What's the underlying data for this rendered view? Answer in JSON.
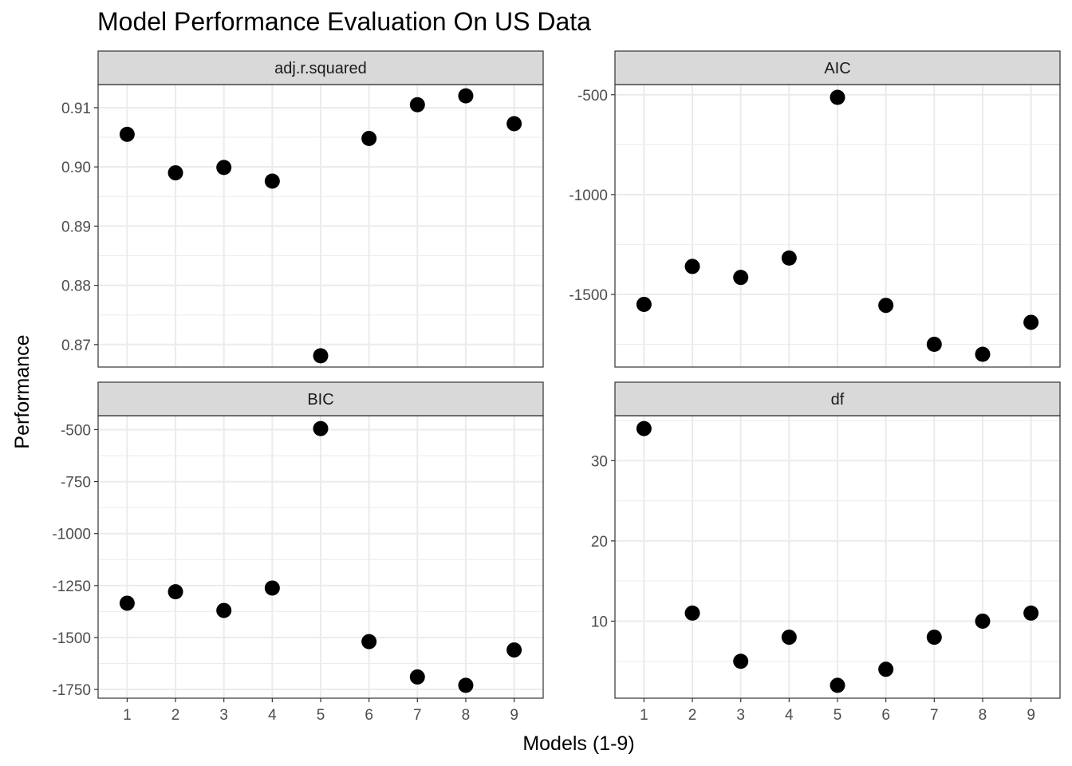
{
  "chart_data": {
    "type": "scatter",
    "title": "Model Performance Evaluation On US Data",
    "xlabel": "Models (1-9)",
    "ylabel": "Performance",
    "x": [
      1,
      2,
      3,
      4,
      5,
      6,
      7,
      8,
      9
    ],
    "grid": true,
    "point_color": "#000000",
    "facets": [
      {
        "name": "adj.r.squared",
        "values": [
          0.9055,
          0.899,
          0.8999,
          0.8976,
          0.8681,
          0.9048,
          0.9105,
          0.912,
          0.9073
        ],
        "y_ticks": [
          0.87,
          0.88,
          0.89,
          0.9,
          0.91
        ],
        "y_tick_labels": [
          "0.87",
          "0.88",
          "0.89",
          "0.90",
          "0.91"
        ],
        "ylim": [
          0.8662,
          0.9139
        ]
      },
      {
        "name": "AIC",
        "values": [
          -1550,
          -1360,
          -1415,
          -1318,
          -513,
          -1555,
          -1750,
          -1800,
          -1640
        ],
        "y_ticks": [
          -1500,
          -1000,
          -500
        ],
        "y_tick_labels": [
          "-1500",
          "-1000",
          "-500"
        ],
        "ylim": [
          -1864,
          -449
        ]
      },
      {
        "name": "BIC",
        "values": [
          -1335,
          -1280,
          -1370,
          -1262,
          -495,
          -1520,
          -1690,
          -1730,
          -1560
        ],
        "y_ticks": [
          -1750,
          -1500,
          -1250,
          -1000,
          -750,
          -500
        ],
        "y_tick_labels": [
          "-1750",
          "-1500",
          "-1250",
          "-1000",
          "-750",
          "-500"
        ],
        "ylim": [
          -1792,
          -433
        ]
      },
      {
        "name": "df",
        "values": [
          34,
          11,
          5,
          8,
          2,
          4,
          8,
          10,
          11
        ],
        "y_ticks": [
          10,
          20,
          30
        ],
        "y_tick_labels": [
          "10",
          "20",
          "30"
        ],
        "ylim": [
          0.4,
          35.6
        ]
      }
    ]
  }
}
